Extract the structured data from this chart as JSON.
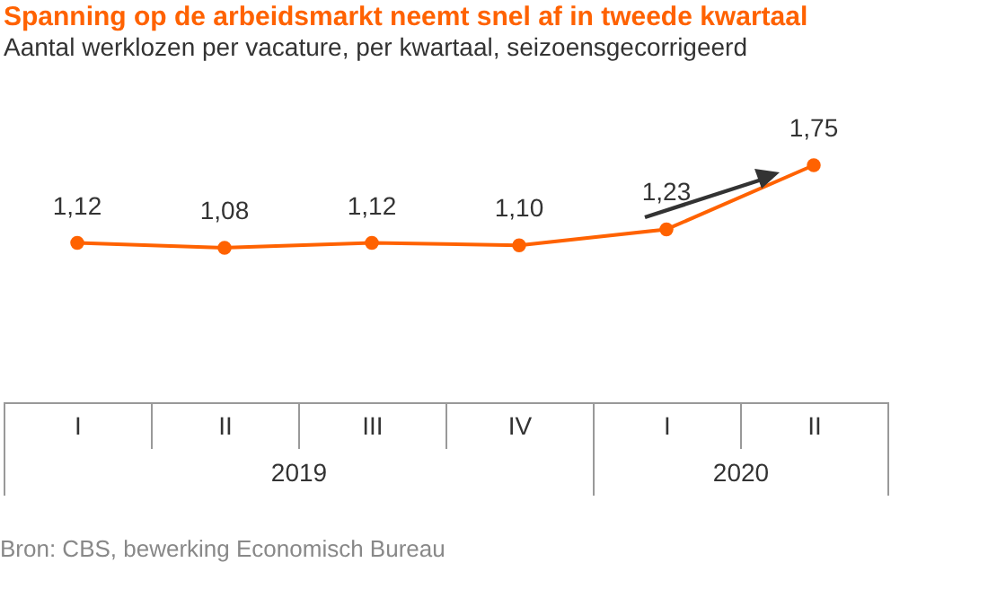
{
  "chart_data": {
    "type": "line",
    "title": "Spanning op de arbeidsmarkt neemt snel af in tweede kwartaal",
    "subtitle": "Aantal werklozen per vacature, per kwartaal, seizoensgecorrigeerd",
    "categories": [
      "I",
      "II",
      "III",
      "IV",
      "I",
      "II"
    ],
    "series": [
      {
        "color": "#ff6200",
        "values": [
          1.12,
          1.08,
          1.12,
          1.1,
          1.23,
          1.75
        ],
        "value_labels": [
          "1,12",
          "1,08",
          "1,12",
          "1,10",
          "1,23",
          "1,75"
        ]
      }
    ],
    "marker": "circle",
    "line_style": "solid",
    "annotations": [
      "2019",
      "2020",
      "Bron: CBS, bewerking Economisch Bureau"
    ]
  }
}
